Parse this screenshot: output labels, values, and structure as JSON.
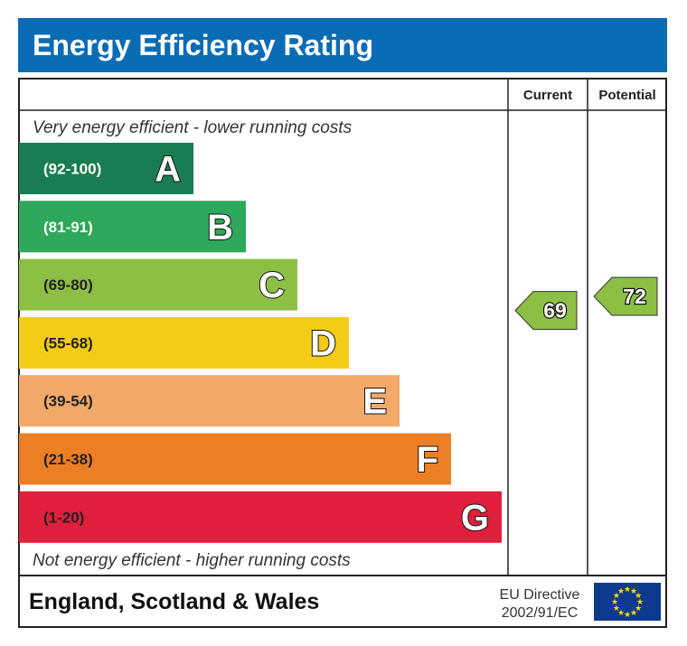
{
  "title": "Energy Efficiency Rating",
  "title_bg": "#0a6cb5",
  "columns": {
    "current": "Current",
    "potential": "Potential"
  },
  "top_note": "Very energy efficient - lower running costs",
  "bottom_note": "Not energy efficient - higher running costs",
  "footer": {
    "region": "England, Scotland & Wales",
    "directive_line1": "EU Directive",
    "directive_line2": "2002/91/EC",
    "flag": "eu-flag-icon"
  },
  "chart_data": {
    "type": "bar",
    "bands": [
      {
        "letter": "A",
        "range": "(92-100)",
        "color": "#1a7d52",
        "text_color": "#ffffff"
      },
      {
        "letter": "B",
        "range": "(81-91)",
        "color": "#2ea85a",
        "text_color": "#ffffff"
      },
      {
        "letter": "C",
        "range": "(69-80)",
        "color": "#8cbf44",
        "text_color": "#222222"
      },
      {
        "letter": "D",
        "range": "(55-68)",
        "color": "#f4cc17",
        "text_color": "#222222"
      },
      {
        "letter": "E",
        "range": "(39-54)",
        "color": "#f2a96a",
        "text_color": "#222222"
      },
      {
        "letter": "F",
        "range": "(21-38)",
        "color": "#ec7f26",
        "text_color": "#222222"
      },
      {
        "letter": "G",
        "range": "(1-20)",
        "color": "#e01f3d",
        "text_color": "#222222"
      }
    ],
    "current": {
      "value": 69,
      "band": "C",
      "color": "#8cbf44"
    },
    "potential": {
      "value": 72,
      "band": "C",
      "color": "#8cbf44"
    }
  }
}
